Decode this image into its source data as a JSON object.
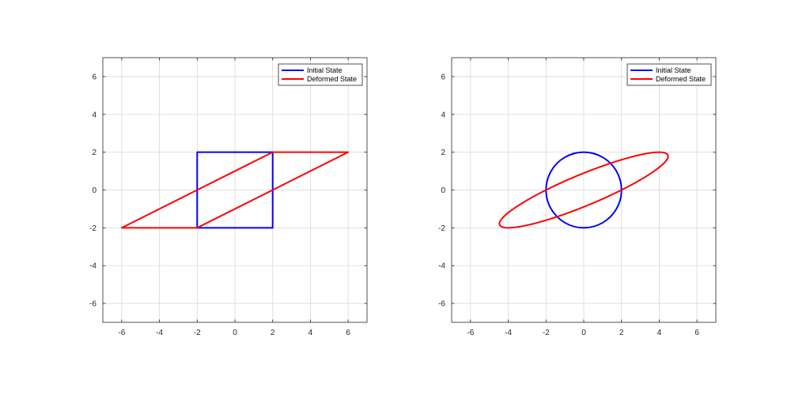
{
  "chart_data": [
    {
      "type": "line",
      "title": "",
      "xlabel": "",
      "ylabel": "",
      "xlim": [
        -7,
        7
      ],
      "ylim": [
        -7,
        7
      ],
      "xticks": [
        -6,
        -4,
        -2,
        0,
        2,
        4,
        6
      ],
      "yticks": [
        -6,
        -4,
        -2,
        0,
        2,
        4,
        6
      ],
      "grid": true,
      "legend_position": "top-right",
      "series": [
        {
          "name": "Initial State",
          "color": "#0000ff",
          "x": [
            -2,
            2,
            2,
            -2,
            -2
          ],
          "y": [
            -2,
            -2,
            2,
            2,
            -2
          ]
        },
        {
          "name": "Deformed State",
          "color": "#ff0000",
          "x": [
            -2,
            2,
            6,
            2,
            -2,
            -6,
            -2
          ],
          "y": [
            -2,
            0,
            2,
            2,
            0,
            -2,
            -2
          ]
        }
      ]
    },
    {
      "type": "line",
      "title": "",
      "xlabel": "",
      "ylabel": "",
      "xlim": [
        -7,
        7
      ],
      "ylim": [
        -7,
        7
      ],
      "xticks": [
        -6,
        -4,
        -2,
        0,
        2,
        4,
        6
      ],
      "yticks": [
        -6,
        -4,
        -2,
        0,
        2,
        4,
        6
      ],
      "grid": true,
      "legend_position": "top-right",
      "series": [
        {
          "name": "Initial State",
          "color": "#0000ff",
          "x": [
            2,
            1.732,
            1,
            0,
            -1,
            -1.732,
            -2,
            -1.732,
            -1,
            0,
            1,
            1.732,
            2
          ],
          "y": [
            0,
            1,
            1.732,
            2,
            1.732,
            1,
            0,
            -1,
            -1.732,
            -2,
            -1.732,
            -1,
            0
          ]
        },
        {
          "name": "Deformed State",
          "color": "#ff0000",
          "x": [
            2,
            3.732,
            4.464,
            4,
            2.464,
            0.268,
            -2,
            -3.732,
            -4.464,
            -4,
            -2.464,
            -0.268,
            2
          ],
          "y": [
            0,
            1,
            1.732,
            2,
            1.732,
            1,
            0,
            -1,
            -1.732,
            -2,
            -1.732,
            -1,
            0
          ]
        }
      ]
    }
  ]
}
